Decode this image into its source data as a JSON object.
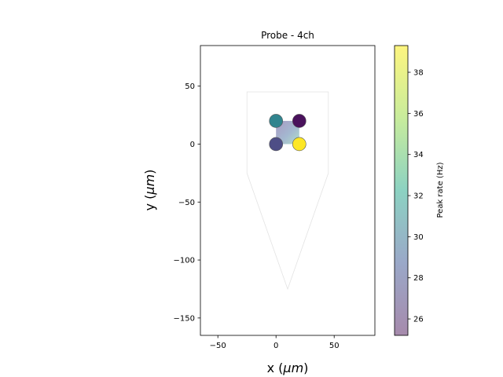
{
  "chart_data": {
    "type": "scatter",
    "title": "Probe - 4ch",
    "xlabel": "x (μm)",
    "ylabel": "y (μm)",
    "xlim": [
      -65,
      85
    ],
    "ylim": [
      -165,
      85
    ],
    "xticks": [
      -50,
      0,
      50
    ],
    "yticks": [
      50,
      0,
      -50,
      -100,
      -150
    ],
    "xtick_labels": [
      "−50",
      "0",
      "50"
    ],
    "ytick_labels": [
      "50",
      "0",
      "−50",
      "−100",
      "−150"
    ],
    "grid": false,
    "probe_contour": [
      [
        -25,
        45
      ],
      [
        45,
        45
      ],
      [
        45,
        -25
      ],
      [
        10,
        -125
      ],
      [
        -25,
        -25
      ]
    ],
    "channels": [
      {
        "x": 0,
        "y": 20,
        "color": "#31848e"
      },
      {
        "x": 20,
        "y": 20,
        "color": "#4a125c"
      },
      {
        "x": 0,
        "y": 0,
        "color": "#4e4e86"
      },
      {
        "x": 20,
        "y": 0,
        "color": "#fde725"
      }
    ],
    "heatmap_square": {
      "x0": 0,
      "x1": 20,
      "y0": 0,
      "y1": 20
    },
    "colorbar": {
      "label": "Peak rate (Hz)",
      "min": 25.2,
      "max": 39.3,
      "ticks": [
        26,
        28,
        30,
        32,
        34,
        36,
        38
      ],
      "tick_labels": [
        "26",
        "28",
        "30",
        "32",
        "34",
        "36",
        "38"
      ],
      "colors": [
        "#a68aac",
        "#9aa8c8",
        "#8cd2c2",
        "#c8ec9c",
        "#fdf57f"
      ]
    }
  }
}
